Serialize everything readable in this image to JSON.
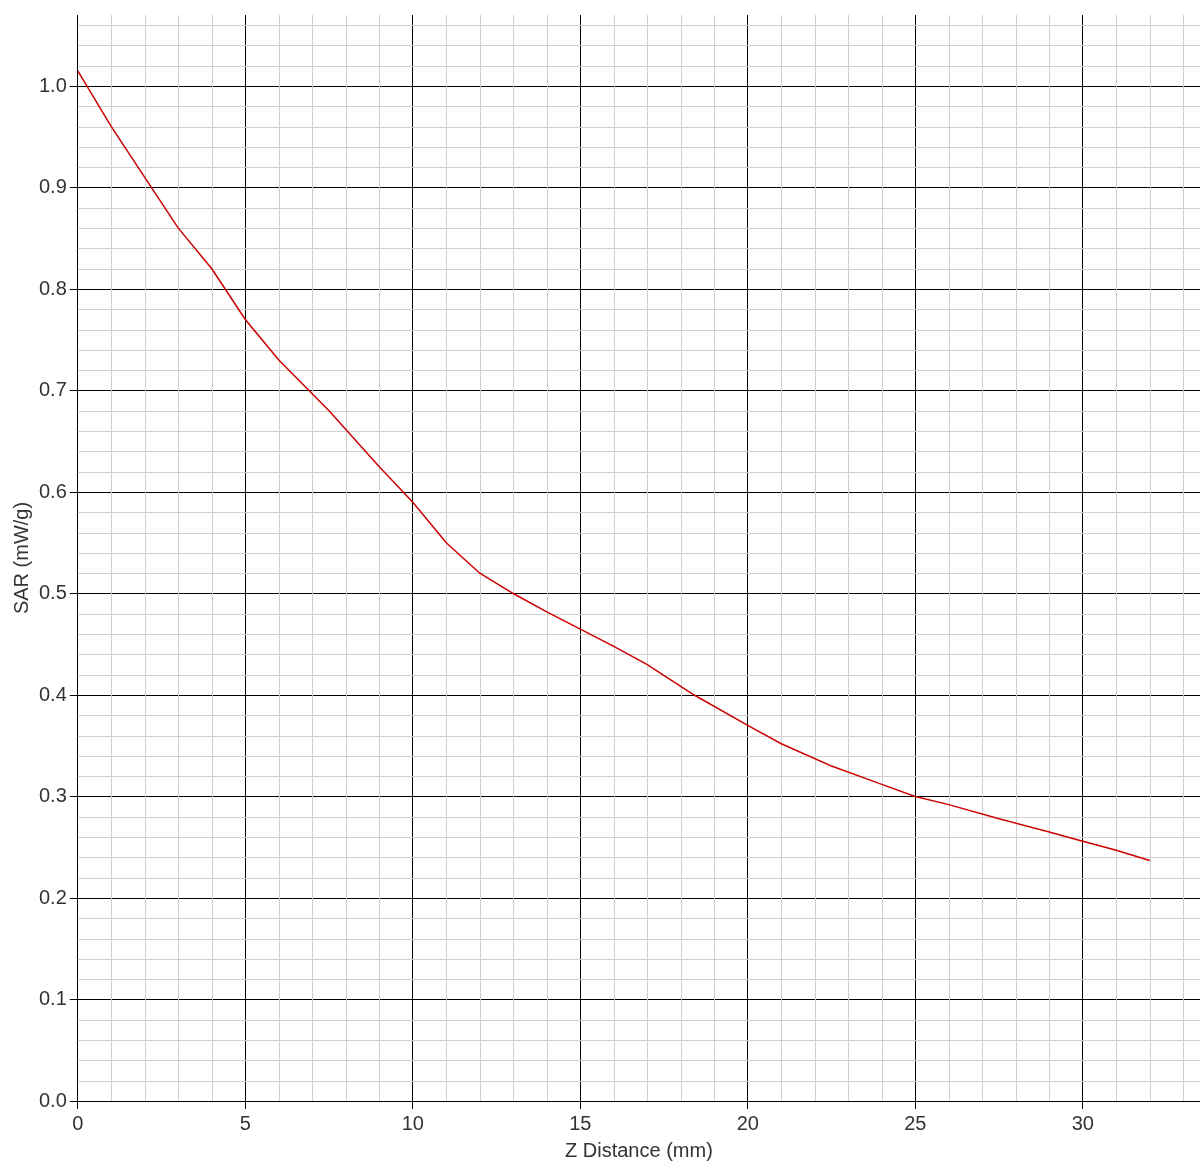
{
  "chart_data": {
    "type": "line",
    "xlabel": "Z Distance (mm)",
    "ylabel": "SAR (mW/g)",
    "x": [
      0,
      1,
      2.2,
      3,
      4,
      5,
      6,
      7.5,
      9,
      10,
      11,
      12,
      13,
      14,
      15,
      16,
      17,
      18.4,
      20,
      21,
      22.5,
      24,
      25,
      26,
      27.5,
      29,
      30,
      31,
      32
    ],
    "series": [
      {
        "color": "#cc0000",
        "values": [
          1.015,
          0.96,
          0.9,
          0.86,
          0.82,
          0.77,
          0.73,
          0.68,
          0.625,
          0.59,
          0.55,
          0.52,
          0.5,
          0.482,
          0.465,
          0.448,
          0.43,
          0.4,
          0.37,
          0.352,
          0.33,
          0.312,
          0.3,
          0.292,
          0.278,
          0.265,
          0.256,
          0.247,
          0.237
        ]
      }
    ],
    "xlim": [
      0,
      33.5
    ],
    "xticks": [
      0,
      5,
      10,
      15,
      20,
      25,
      30
    ],
    "ylim": [
      0,
      1.07
    ],
    "yticks": [
      {
        "value": 0,
        "label": "0.0"
      },
      {
        "value": 0.1,
        "label": "0.1"
      },
      {
        "value": 0.2,
        "label": "0.2"
      },
      {
        "value": 0.3,
        "label": "0.3"
      },
      {
        "value": 0.4,
        "label": "0.4"
      },
      {
        "value": 0.5,
        "label": "0.5"
      },
      {
        "value": 0.6,
        "label": "0.6"
      },
      {
        "value": 0.7,
        "label": "0.7"
      },
      {
        "value": 0.8,
        "label": "0.8"
      },
      {
        "value": 0.9,
        "label": "0.9"
      },
      {
        "value": 1,
        "label": "1.0"
      }
    ],
    "grid": true,
    "marker": "none",
    "line_style": "solid",
    "legend": false
  }
}
